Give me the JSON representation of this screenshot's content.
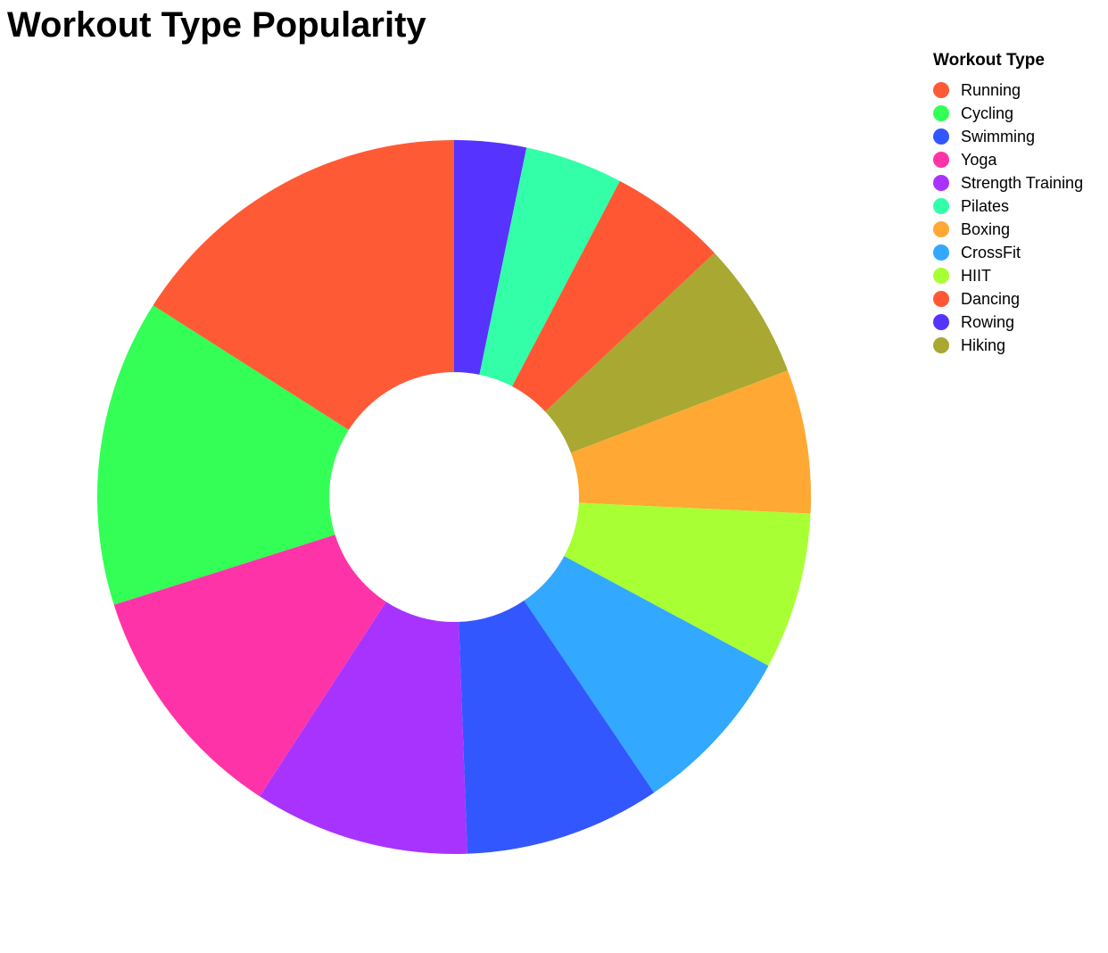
{
  "chart_data": {
    "type": "pie",
    "title": "Workout Type Popularity",
    "legend_title": "Workout Type",
    "legend_position": "top-right",
    "donut": true,
    "slices": [
      {
        "label": "Running",
        "value": 2700,
        "color": "#ff5a36"
      },
      {
        "label": "Cycling",
        "value": 2350,
        "color": "#33ff57"
      },
      {
        "label": "Swimming",
        "value": 1500,
        "color": "#3357ff"
      },
      {
        "label": "Yoga",
        "value": 1850,
        "color": "#ff33a8"
      },
      {
        "label": "Strength Training",
        "value": 1650,
        "color": "#a833ff"
      },
      {
        "label": "Pilates",
        "value": 750,
        "color": "#33ffa8"
      },
      {
        "label": "Boxing",
        "value": 1100,
        "color": "#ffa833"
      },
      {
        "label": "CrossFit",
        "value": 1300,
        "color": "#33a8ff"
      },
      {
        "label": "HIIT",
        "value": 1200,
        "color": "#a8ff33"
      },
      {
        "label": "Dancing",
        "value": 900,
        "color": "#ff5733"
      },
      {
        "label": "Rowing",
        "value": 550,
        "color": "#5733ff"
      },
      {
        "label": "Hiking",
        "value": 1050,
        "color": "#a8a833"
      }
    ],
    "sort": "ascending-clockwise"
  }
}
